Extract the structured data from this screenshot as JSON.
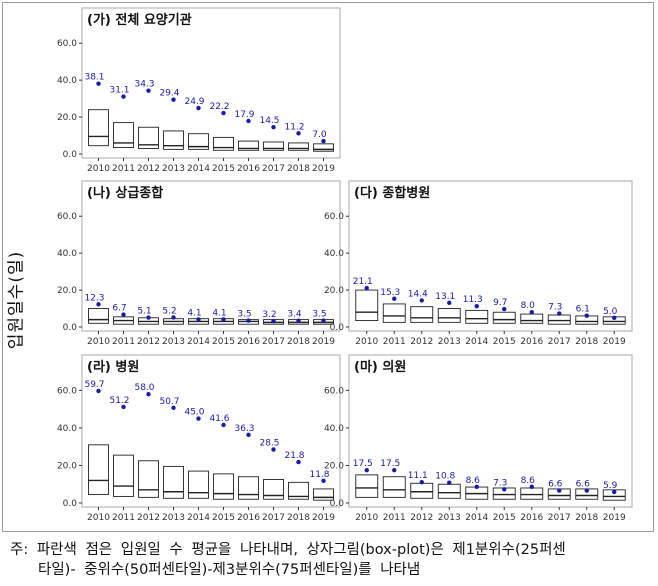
{
  "ylabel": "입원일수(일)",
  "note": {
    "line1": "주: 파란색 점은 입원일 수 평균을 나타내며, 상자그림(box-plot)은 제1분위수(25퍼센",
    "line2": "타일)- 중위수(50퍼센타일)-제3분위수(75퍼센타일)를 나타냄"
  },
  "colors": {
    "mean_point": "#1a1aa6",
    "box_stroke": "#222222",
    "panel_border": "#aaaaaa"
  },
  "chart_data": [
    {
      "type": "box",
      "title": "(가) 전체 요양기관",
      "x": [
        "2010",
        "2011",
        "2012",
        "2013",
        "2014",
        "2015",
        "2016",
        "2017",
        "2018",
        "2019"
      ],
      "yticks": [
        "0.0",
        "20.0",
        "40.0",
        "60.0"
      ],
      "ylim": [
        0,
        65
      ],
      "mean": [
        38.1,
        31.1,
        34.3,
        29.4,
        24.9,
        22.2,
        17.9,
        14.5,
        11.2,
        7.0
      ],
      "q1": [
        4.5,
        3.5,
        3,
        2.5,
        2.5,
        2,
        2,
        2,
        2,
        1.5
      ],
      "median": [
        9.5,
        6,
        5,
        4.5,
        4,
        3.5,
        3,
        3,
        3,
        2.5
      ],
      "q3": [
        24,
        17,
        14.5,
        12.5,
        11,
        9,
        7,
        6.5,
        6,
        5.5
      ]
    },
    {
      "type": "box",
      "title": "(나) 상급종합",
      "x": [
        "2010",
        "2011",
        "2012",
        "2013",
        "2014",
        "2015",
        "2016",
        "2017",
        "2018",
        "2019"
      ],
      "yticks": [
        "0.0",
        "20.0",
        "40.0",
        "60.0"
      ],
      "ylim": [
        0,
        65
      ],
      "mean": [
        12.3,
        6.7,
        5.1,
        5.2,
        4.1,
        4.1,
        3.5,
        3.2,
        3.4,
        3.5
      ],
      "q1": [
        2,
        1.5,
        1.5,
        1.5,
        1.5,
        1.5,
        1.5,
        1.5,
        1.5,
        1.5
      ],
      "median": [
        4,
        3.5,
        3,
        3,
        3,
        3,
        3,
        2.5,
        2.5,
        2.5
      ],
      "q3": [
        10,
        5.5,
        5,
        4.5,
        4.5,
        4.5,
        4,
        4,
        4,
        4
      ]
    },
    {
      "type": "box",
      "title": "(다) 종합병원",
      "x": [
        "2010",
        "2011",
        "2012",
        "2013",
        "2014",
        "2015",
        "2016",
        "2017",
        "2018",
        "2019"
      ],
      "yticks": [
        "0.0",
        "20.0",
        "40.0",
        "60.0"
      ],
      "ylim": [
        0,
        65
      ],
      "mean": [
        21.1,
        15.3,
        14.4,
        13.1,
        11.3,
        9.7,
        8.0,
        7.3,
        6.1,
        5.0
      ],
      "q1": [
        3.5,
        2.5,
        2.5,
        2.5,
        2,
        2,
        2,
        1.5,
        1.5,
        1.5
      ],
      "median": [
        8,
        6,
        5,
        5,
        4.5,
        4,
        3.5,
        3.5,
        3,
        3
      ],
      "q3": [
        20,
        12.5,
        11,
        10,
        9,
        8,
        7,
        6.5,
        6,
        5.5
      ]
    },
    {
      "type": "box",
      "title": "(라) 병원",
      "x": [
        "2010",
        "2011",
        "2012",
        "2013",
        "2014",
        "2015",
        "2016",
        "2017",
        "2018",
        "2019"
      ],
      "yticks": [
        "0.0",
        "20.0",
        "40.0",
        "60.0"
      ],
      "ylim": [
        0,
        65
      ],
      "mean": [
        59.7,
        51.2,
        58.0,
        50.7,
        45.0,
        41.6,
        36.3,
        28.5,
        21.8,
        11.8
      ],
      "q1": [
        4.5,
        3.5,
        3,
        2.5,
        2.5,
        2,
        2,
        2,
        2,
        1.5
      ],
      "median": [
        12,
        9,
        7,
        6,
        5.5,
        5,
        4.5,
        4,
        3.5,
        3
      ],
      "q3": [
        31,
        25.5,
        22.5,
        19.5,
        17,
        15.5,
        14,
        12.5,
        11,
        7.5
      ]
    },
    {
      "type": "box",
      "title": "(마) 의원",
      "x": [
        "2010",
        "2011",
        "2012",
        "2013",
        "2014",
        "2015",
        "2016",
        "2017",
        "2018",
        "2019"
      ],
      "yticks": [
        "0.0",
        "20.0",
        "40.0",
        "60.0"
      ],
      "ylim": [
        0,
        65
      ],
      "mean": [
        17.5,
        17.5,
        11.1,
        10.8,
        8.6,
        7.3,
        8.6,
        6.6,
        6.6,
        5.9
      ],
      "q1": [
        3,
        3,
        2.5,
        2.5,
        2,
        2,
        2,
        2,
        2,
        1.5
      ],
      "median": [
        8,
        7,
        6,
        5.5,
        5,
        4.5,
        4.5,
        4,
        4,
        3.5
      ],
      "q3": [
        15,
        14,
        10.5,
        10,
        8.5,
        8,
        8,
        7.5,
        7.5,
        7
      ]
    }
  ]
}
